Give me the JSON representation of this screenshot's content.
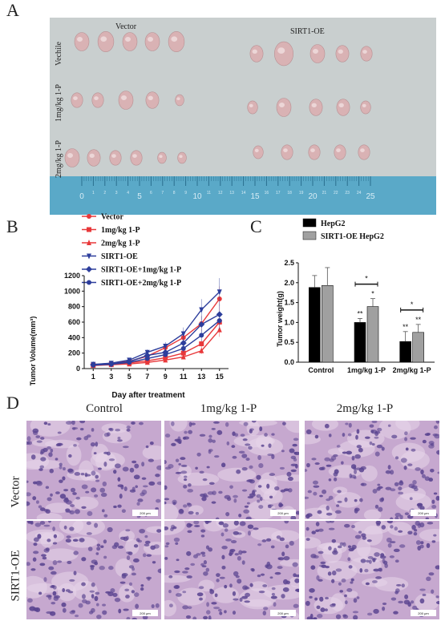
{
  "panels": {
    "a": "A",
    "b": "B",
    "c": "C",
    "d": "D"
  },
  "panel_a": {
    "group_labels": [
      "Vector",
      "SIRT1-OE"
    ],
    "row_labels": [
      "Vechile",
      "1mg/kg 1-P",
      "2mg/kg 1-P"
    ],
    "ruler_numbers": [
      "0",
      "1",
      "2",
      "3",
      "4",
      "5",
      "6",
      "7",
      "8",
      "9",
      "10",
      "11",
      "12",
      "13",
      "14",
      "15",
      "16",
      "17",
      "18",
      "19",
      "20",
      "21",
      "22",
      "23",
      "24",
      "25"
    ],
    "colors": {
      "background": "#c9cfcf",
      "ruler": "#5aa9c8",
      "tissue": "#d9b2b4"
    }
  },
  "panel_d": {
    "columns": [
      "Control",
      "1mg/kg 1-P",
      "2mg/kg 1-P"
    ],
    "rows": [
      "Vector",
      "SIRT1-OE"
    ],
    "scale_bar_text": "200 μm",
    "colors": {
      "stain_bg": "#c6a8cf",
      "nuclei": "#5a4490"
    }
  },
  "chart_data": [
    {
      "type": "line",
      "xlabel": "Day after treatment",
      "ylabel": "Tumor Volume(mm³)",
      "x": [
        1,
        3,
        5,
        7,
        9,
        11,
        13,
        15
      ],
      "xlim": [
        0,
        16
      ],
      "ylim": [
        0,
        1200
      ],
      "yticks": [
        0,
        200,
        400,
        600,
        800,
        1000,
        1200
      ],
      "legend_position": "top-left",
      "series": [
        {
          "name": "Vector",
          "color": "#e8383a",
          "marker": "circle",
          "values": [
            50,
            65,
            95,
            160,
            270,
            400,
            580,
            900
          ]
        },
        {
          "name": "1mg/kg 1-P",
          "color": "#e8383a",
          "marker": "square",
          "values": [
            45,
            55,
            75,
            100,
            140,
            200,
            320,
            600
          ]
        },
        {
          "name": "2mg/kg 1-P",
          "color": "#e8383a",
          "marker": "triangle",
          "values": [
            40,
            50,
            60,
            80,
            110,
            150,
            230,
            500
          ]
        },
        {
          "name": "SIRT1-OE",
          "color": "#2d3e9c",
          "marker": "triangle-down",
          "values": [
            55,
            70,
            110,
            210,
            290,
            450,
            760,
            990
          ]
        },
        {
          "name": "SIRT1-OE+1mg/kg 1-P",
          "color": "#2d3e9c",
          "marker": "diamond",
          "values": [
            50,
            60,
            90,
            170,
            210,
            330,
            570,
            700
          ]
        },
        {
          "name": "SIRT1-OE+2mg/kg 1-P",
          "color": "#2d3e9c",
          "marker": "circle",
          "values": [
            45,
            55,
            80,
            130,
            180,
            260,
            430,
            620
          ]
        }
      ]
    },
    {
      "type": "bar",
      "ylabel": "Tumor weight(g)",
      "categories": [
        "Control",
        "1mg/kg 1-P",
        "2mg/kg 1-P"
      ],
      "ylim": [
        0,
        2.5
      ],
      "yticks": [
        0.0,
        0.5,
        1.0,
        1.5,
        2.0,
        2.5
      ],
      "legend_position": "top",
      "series": [
        {
          "name": "HepG2",
          "color": "#000000",
          "values": [
            1.88,
            1.0,
            0.52
          ],
          "errors": [
            0.3,
            0.1,
            0.25
          ]
        },
        {
          "name": "SIRT1-OE HepG2",
          "color": "#a0a0a0",
          "values": [
            1.93,
            1.4,
            0.75
          ],
          "errors": [
            0.45,
            0.2,
            0.2
          ]
        }
      ],
      "annotations": {
        "significance_bars": [
          "*",
          "*"
        ],
        "hepg2_marks": [
          "",
          "**",
          "**"
        ],
        "sirt1_marks": [
          "",
          "*",
          "**"
        ]
      }
    }
  ]
}
